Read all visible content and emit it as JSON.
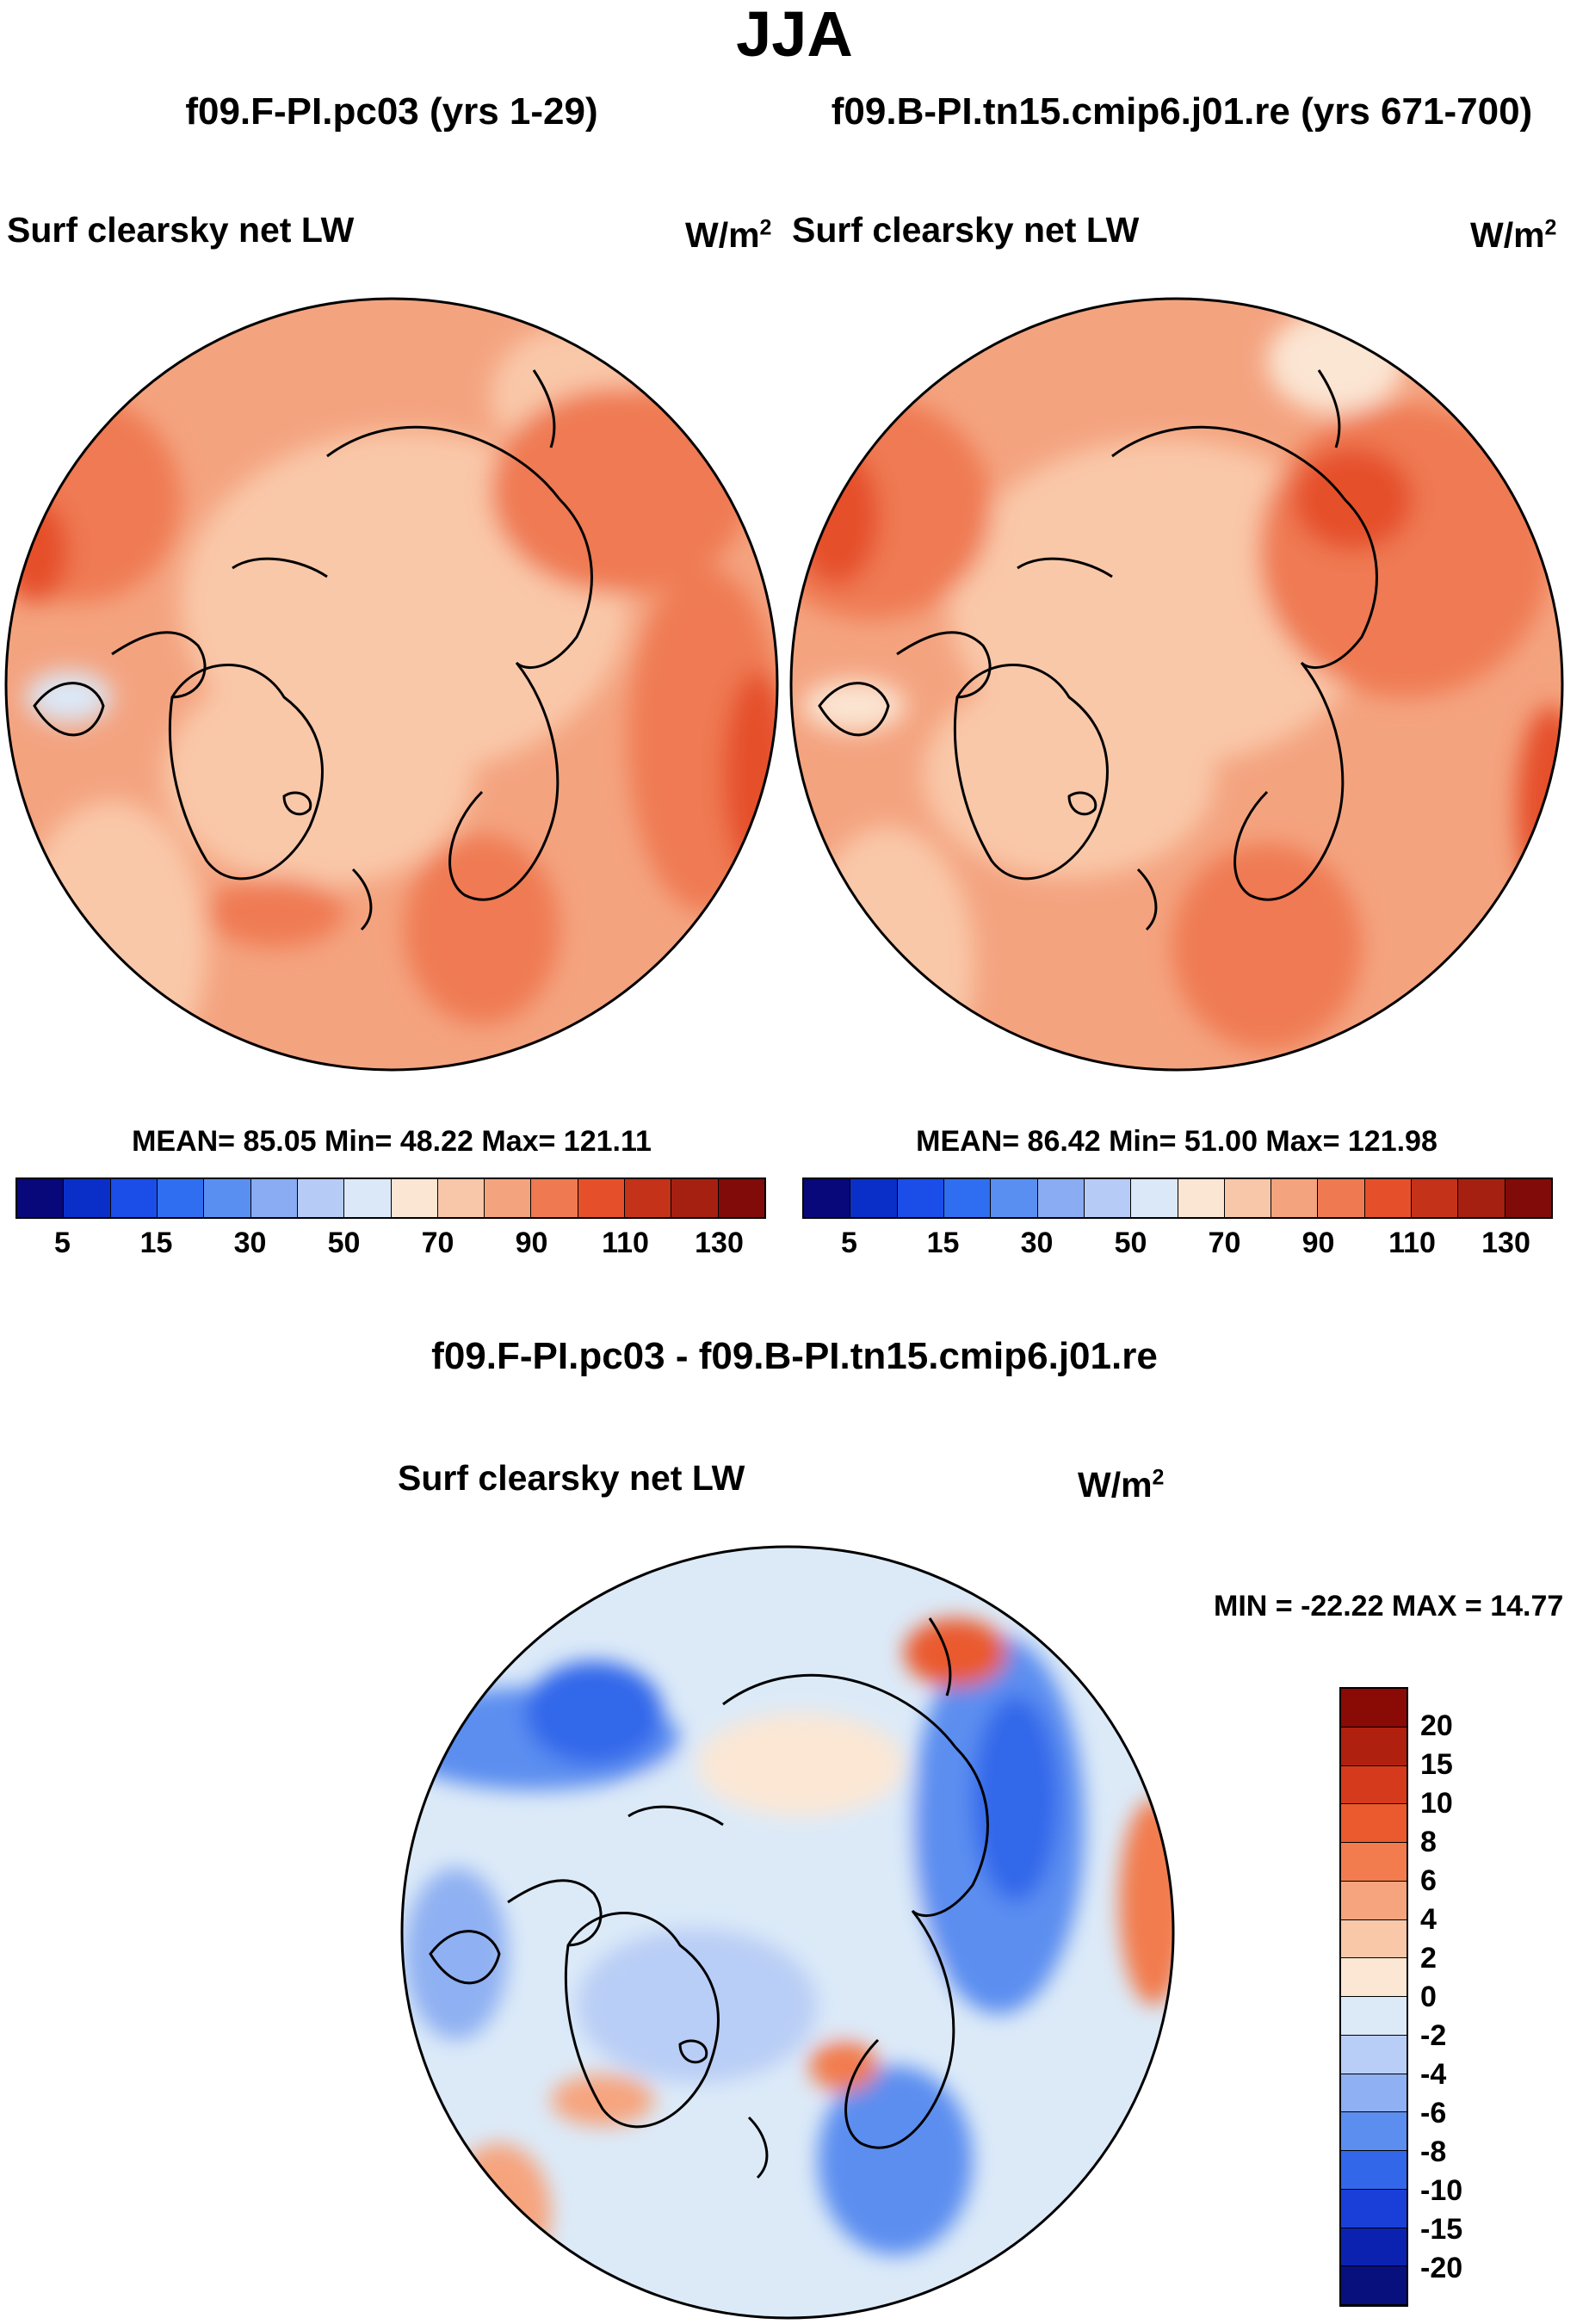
{
  "page": {
    "title": "JJA",
    "panel_left": {
      "header": "f09.F-PI.pc03 (yrs 1-29)",
      "variable": "Surf clearsky net LW",
      "unit": "W/m",
      "unit_exp": "2",
      "stats": "MEAN=  85.05  Min=  48.22  Max= 121.11"
    },
    "panel_right": {
      "header": "f09.B-PI.tn15.cmip6.j01.re (yrs 671-700)",
      "variable": "Surf clearsky net LW",
      "unit": "W/m",
      "unit_exp": "2",
      "stats": "MEAN=  86.42  Min=  51.00  Max= 121.98"
    },
    "panel_diff": {
      "header": "f09.F-PI.pc03 - f09.B-PI.tn15.cmip6.j01.re",
      "variable": "Surf clearsky net LW",
      "unit": "W/m",
      "unit_exp": "2",
      "minmax": "MIN = -22.22 MAX =  14.77"
    }
  },
  "chart_data": [
    {
      "type": "heatmap",
      "projection": "north polar stereographic",
      "title": "f09.F-PI.pc03 (yrs 1-29)",
      "variable": "Surf clearsky net LW",
      "units": "W/m2",
      "mean": 85.05,
      "min": 48.22,
      "max": 121.11,
      "levels": [
        5,
        10,
        15,
        20,
        30,
        40,
        50,
        60,
        70,
        80,
        90,
        100,
        110,
        120,
        130
      ],
      "tick_labels": [
        "5",
        "15",
        "30",
        "50",
        "70",
        "90",
        "110",
        "130"
      ],
      "colors": [
        "#08087a",
        "#0a2fc8",
        "#1b4ee8",
        "#2f6ef0",
        "#5a8ff2",
        "#89acf2",
        "#b6cbf5",
        "#dbe8f8",
        "#fbe5d3",
        "#f8c7a9",
        "#f4a37f",
        "#ef7a52",
        "#e5502b",
        "#c5321a",
        "#a52011",
        "#800b08"
      ]
    },
    {
      "type": "heatmap",
      "projection": "north polar stereographic",
      "title": "f09.B-PI.tn15.cmip6.j01.re (yrs 671-700)",
      "variable": "Surf clearsky net LW",
      "units": "W/m2",
      "mean": 86.42,
      "min": 51.0,
      "max": 121.98,
      "levels": [
        5,
        10,
        15,
        20,
        30,
        40,
        50,
        60,
        70,
        80,
        90,
        100,
        110,
        120,
        130
      ],
      "tick_labels": [
        "5",
        "15",
        "30",
        "50",
        "70",
        "90",
        "110",
        "130"
      ],
      "colors": [
        "#08087a",
        "#0a2fc8",
        "#1b4ee8",
        "#2f6ef0",
        "#5a8ff2",
        "#89acf2",
        "#b6cbf5",
        "#dbe8f8",
        "#fbe5d3",
        "#f8c7a9",
        "#f4a37f",
        "#ef7a52",
        "#e5502b",
        "#c5321a",
        "#a52011",
        "#800b08"
      ]
    },
    {
      "type": "heatmap",
      "projection": "north polar stereographic",
      "title": "f09.F-PI.pc03 - f09.B-PI.tn15.cmip6.j01.re",
      "variable": "Surf clearsky net LW",
      "units": "W/m2",
      "min": -22.22,
      "max": 14.77,
      "levels": [
        -20,
        -15,
        -10,
        -8,
        -6,
        -4,
        -2,
        0,
        2,
        4,
        6,
        8,
        10,
        15,
        20
      ],
      "tick_labels": [
        "20",
        "15",
        "10",
        "8",
        "6",
        "4",
        "2",
        "0",
        "-2",
        "-4",
        "-6",
        "-8",
        "-10",
        "-15",
        "-20"
      ],
      "colors": [
        "#8a0a05",
        "#b0200f",
        "#d63a1c",
        "#ea5a2e",
        "#f27c4e",
        "#f6a47e",
        "#f9c8a9",
        "#fbe7d4",
        "#dceaf8",
        "#b9cef6",
        "#8fb0f2",
        "#5c8ef0",
        "#3267ea",
        "#1a3fd8",
        "#0b22b0",
        "#07107c"
      ]
    }
  ]
}
